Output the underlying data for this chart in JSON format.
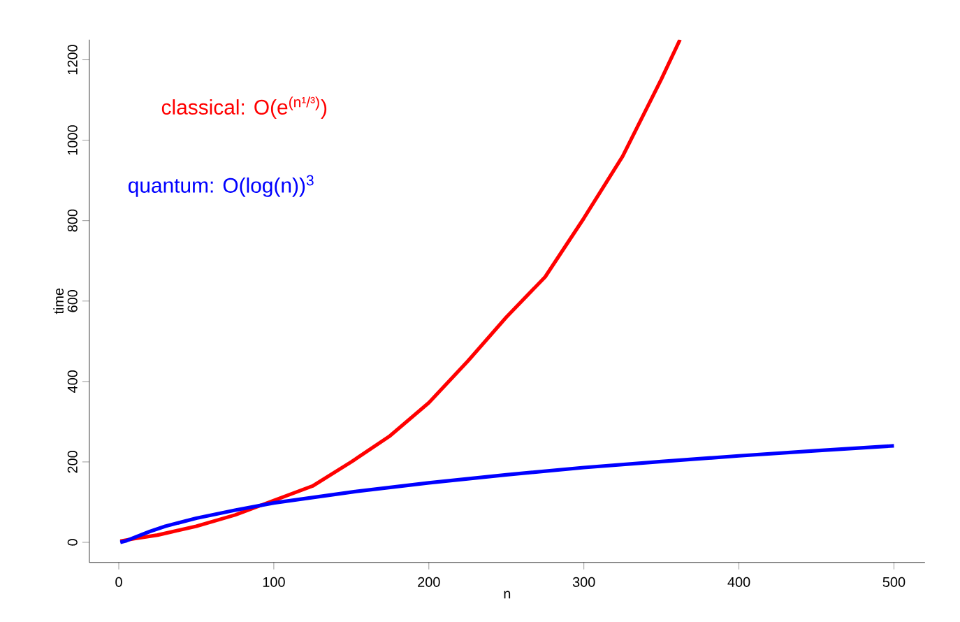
{
  "chart_data": {
    "type": "line",
    "xlabel": "n",
    "ylabel": "time",
    "xlim": [
      -19,
      520
    ],
    "ylim": [
      -50,
      1250
    ],
    "xticks": [
      0,
      100,
      200,
      300,
      400,
      500
    ],
    "yticks": [
      0,
      200,
      400,
      600,
      800,
      1000,
      1200
    ],
    "legend": false,
    "grid": false,
    "line_style": "solid",
    "series": [
      {
        "name": "classical: O(e$^{(n¹/³)}$)",
        "color": "#ff0000",
        "x": [
          1,
          10,
          25,
          50,
          75,
          100,
          125,
          150,
          175,
          200,
          225,
          250,
          275,
          300,
          325,
          350,
          362
        ],
        "values": [
          3,
          9,
          18,
          40,
          68,
          104,
          140,
          200,
          265,
          347,
          450,
          560,
          660,
          806,
          960,
          1152,
          1250
        ]
      },
      {
        "name": "quantum: O(log(n))$^{3}$",
        "color": "#0000ff",
        "x": [
          1,
          5,
          10,
          20,
          30,
          50,
          75,
          100,
          150,
          200,
          250,
          300,
          350,
          400,
          450,
          500
        ],
        "values": [
          0,
          4,
          12,
          27,
          40,
          60,
          80,
          98,
          125,
          148,
          168,
          186,
          201,
          215,
          228,
          240
        ]
      }
    ]
  }
}
